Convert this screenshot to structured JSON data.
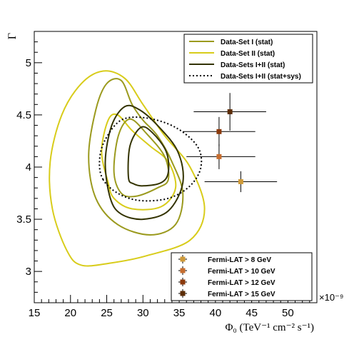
{
  "chart_data": {
    "type": "scatter",
    "title": "",
    "xlabel": "Φ₀ (TeV⁻¹ cm⁻² s⁻¹)",
    "ylabel": "Γ",
    "x_exponent_label": "×10⁻⁹",
    "xlim": [
      15,
      54
    ],
    "ylim": [
      2.7,
      5.3
    ],
    "x_ticks": [
      15,
      20,
      25,
      30,
      35,
      40,
      45,
      50
    ],
    "y_ticks": [
      3,
      3.5,
      4,
      4.5,
      5
    ],
    "x_tick_labels": [
      "15",
      "20",
      "25",
      "30",
      "35",
      "40",
      "45",
      "50"
    ],
    "y_tick_labels": [
      "3",
      "3.5",
      "4",
      "4.5",
      "5"
    ],
    "contour_legend": [
      {
        "label": "Data-Set I  (stat)",
        "color": "#9b9a1e",
        "style": "solid"
      },
      {
        "label": "Data-Set II (stat)",
        "color": "#d8cc1a",
        "style": "solid"
      },
      {
        "label": "Data-Sets I+II (stat)",
        "color": "#333300",
        "style": "solid"
      },
      {
        "label": "Data-Sets I+II (stat+sys)",
        "color": "#000000",
        "style": "dotted"
      }
    ],
    "contours": [
      {
        "set": 1,
        "color": "#d8cc1a",
        "points": [
          [
            21.5,
            3.06
          ],
          [
            19.5,
            3.2
          ],
          [
            17.5,
            3.6
          ],
          [
            17.2,
            4.05
          ],
          [
            18.8,
            4.5
          ],
          [
            21.5,
            4.8
          ],
          [
            24.5,
            4.92
          ],
          [
            27.5,
            4.85
          ],
          [
            30,
            4.6
          ],
          [
            33,
            4.3
          ],
          [
            36.5,
            4.0
          ],
          [
            38.5,
            3.6
          ],
          [
            36.5,
            3.3
          ],
          [
            30.5,
            3.15
          ],
          [
            25.5,
            3.08
          ]
        ]
      },
      {
        "set": 1,
        "color": "#d8cc1a",
        "points": [
          [
            25.2,
            3.85
          ],
          [
            24.3,
            4.15
          ],
          [
            25.2,
            4.45
          ],
          [
            26.5,
            4.5
          ],
          [
            28.5,
            4.35
          ],
          [
            31,
            4.2
          ],
          [
            33.5,
            4.05
          ],
          [
            34.5,
            3.8
          ],
          [
            32.5,
            3.62
          ],
          [
            28.5,
            3.6
          ],
          [
            26,
            3.7
          ]
        ]
      },
      {
        "set": 0,
        "color": "#9b9a1e",
        "points": [
          [
            23.5,
            3.7
          ],
          [
            22.5,
            4.1
          ],
          [
            23.5,
            4.55
          ],
          [
            25,
            4.8
          ],
          [
            27,
            4.83
          ],
          [
            28.5,
            4.6
          ],
          [
            30,
            4.45
          ],
          [
            32,
            4.3
          ],
          [
            34,
            4.05
          ],
          [
            35.5,
            3.75
          ],
          [
            34.5,
            3.45
          ],
          [
            31,
            3.35
          ],
          [
            26.5,
            3.45
          ]
        ]
      },
      {
        "set": 0,
        "color": "#9b9a1e",
        "points": [
          [
            26,
            3.95
          ],
          [
            26.6,
            4.3
          ],
          [
            28.2,
            4.46
          ],
          [
            30.5,
            4.32
          ],
          [
            33,
            4.1
          ],
          [
            33.5,
            3.88
          ],
          [
            32,
            3.8
          ],
          [
            29,
            3.72
          ],
          [
            27,
            3.75
          ]
        ]
      },
      {
        "set": 2,
        "color": "#333300",
        "points": [
          [
            25.5,
            3.7
          ],
          [
            24.8,
            4.05
          ],
          [
            25.7,
            4.4
          ],
          [
            27.5,
            4.58
          ],
          [
            29.5,
            4.55
          ],
          [
            32,
            4.4
          ],
          [
            34.8,
            4.15
          ],
          [
            35.5,
            3.85
          ],
          [
            33.5,
            3.58
          ],
          [
            30,
            3.5
          ],
          [
            27,
            3.55
          ]
        ]
      },
      {
        "set": 2,
        "color": "#333300",
        "points": [
          [
            28,
            3.9
          ],
          [
            28.2,
            4.2
          ],
          [
            29.7,
            4.38
          ],
          [
            31.3,
            4.33
          ],
          [
            33.2,
            4.15
          ],
          [
            33.5,
            3.95
          ],
          [
            32.5,
            3.85
          ],
          [
            30,
            3.82
          ],
          [
            28.7,
            3.84
          ]
        ]
      },
      {
        "set": 3,
        "color": "#000000",
        "points": [
          [
            24.5,
            3.88
          ],
          [
            24,
            4.05
          ],
          [
            24.7,
            4.25
          ],
          [
            27,
            4.45
          ],
          [
            30.5,
            4.47
          ],
          [
            34.5,
            4.38
          ],
          [
            37.5,
            4.2
          ],
          [
            38,
            4.0
          ],
          [
            36.5,
            3.82
          ],
          [
            33.5,
            3.7
          ],
          [
            29.5,
            3.68
          ],
          [
            26.5,
            3.75
          ]
        ]
      }
    ],
    "series": [
      {
        "name": "Fermi-LAT > 8  GeV",
        "color": "#cf9a38",
        "points": [
          {
            "x": 43.5,
            "y": 3.86,
            "xerr_low": 5.0,
            "xerr_high": 5.0,
            "yerr_low": 0.1,
            "yerr_high": 0.1
          }
        ]
      },
      {
        "name": "Fermi-LAT > 10 GeV",
        "color": "#c76d2e",
        "points": [
          {
            "x": 40.5,
            "y": 4.1,
            "xerr_low": 4.5,
            "xerr_high": 5.0,
            "yerr_low": 0.12,
            "yerr_high": 0.12
          }
        ]
      },
      {
        "name": "Fermi-LAT > 12 GeV",
        "color": "#8c3a0c",
        "points": [
          {
            "x": 40.5,
            "y": 4.34,
            "xerr_low": 5.0,
            "xerr_high": 5.0,
            "yerr_low": 0.14,
            "yerr_high": 0.14
          }
        ]
      },
      {
        "name": "Fermi-LAT > 15 GeV",
        "color": "#5c2d06",
        "points": [
          {
            "x": 42.0,
            "y": 4.53,
            "xerr_low": 5.0,
            "xerr_high": 5.0,
            "yerr_low": 0.18,
            "yerr_high": 0.18
          }
        ]
      }
    ],
    "grid": false,
    "legend_contours_position": "top-right",
    "legend_points_position": "bottom-right"
  }
}
